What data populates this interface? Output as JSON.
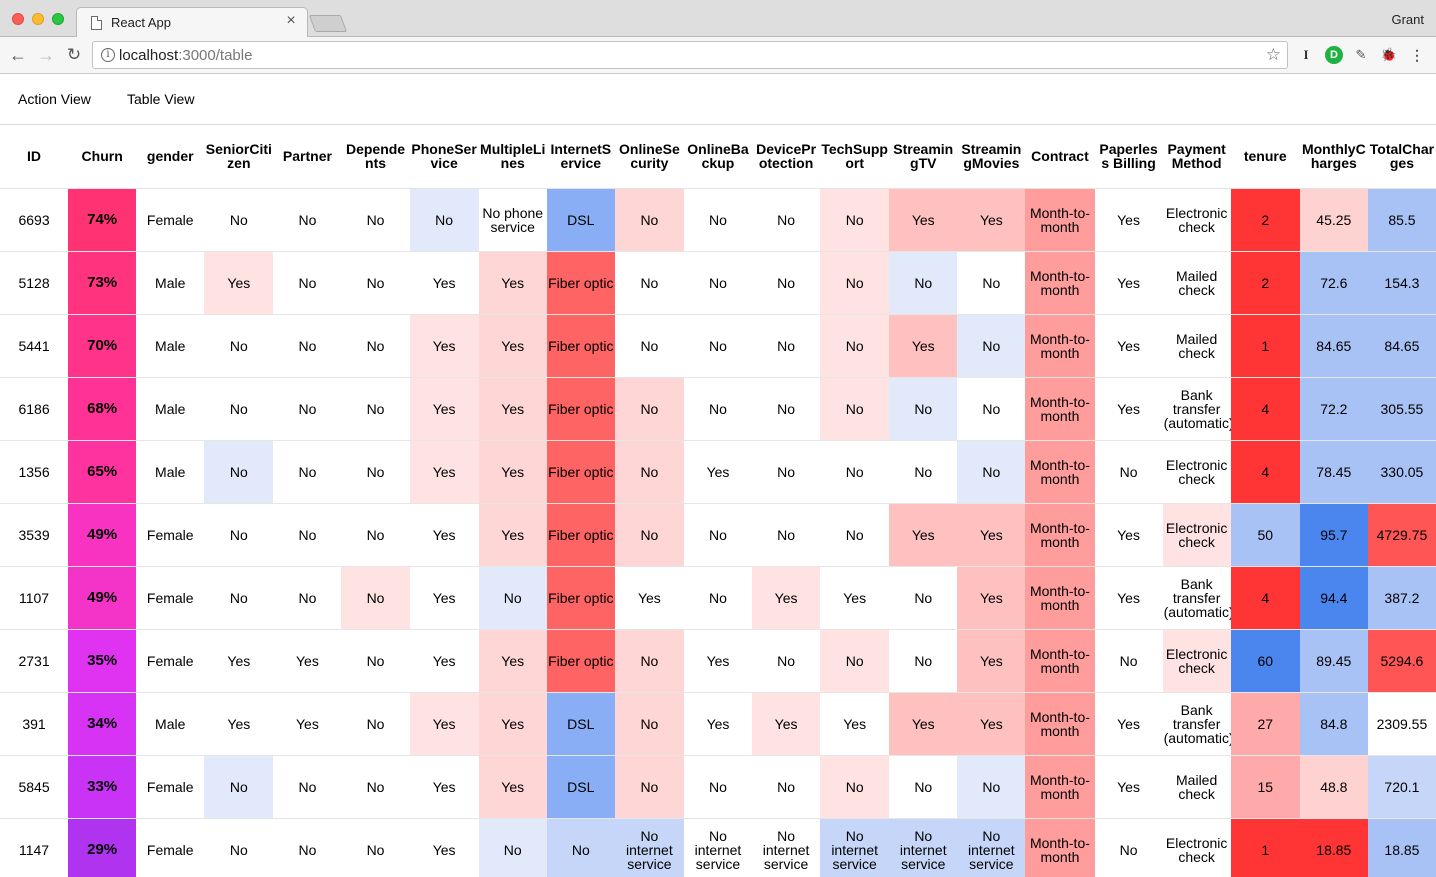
{
  "browser": {
    "tab_title": "React App",
    "tab_close": "×",
    "profile": "Grant",
    "url_host": "localhost",
    "url_path": ":3000/table",
    "info_glyph": "i",
    "back_glyph": "←",
    "forward_glyph": "→",
    "reload_glyph": "↻",
    "star_glyph": "☆",
    "ext_icons": [
      "I",
      "D",
      "✎",
      "🐞"
    ],
    "menu_glyph": "⋮"
  },
  "nav": {
    "action_view": "Action View",
    "table_view": "Table View"
  },
  "colors": {
    "red_strong": "#ff3333",
    "red_medium": "#ff9999",
    "red_light": "#ffc9c9",
    "red_faint": "#ffe3e3",
    "blue_strong": "#4a86ee",
    "blue_medium": "#8aaef5",
    "blue_light": "#c6d6f8",
    "blue_faint": "#e1e9fb"
  },
  "table": {
    "columns": [
      "ID",
      "Churn",
      "gender",
      "SeniorCitizen",
      "Partner",
      "Dependents",
      "PhoneService",
      "MultipleLines",
      "InternetService",
      "OnlineSecurity",
      "OnlineBackup",
      "DeviceProtection",
      "TechSupport",
      "StreamingTV",
      "StreamingMovies",
      "Contract",
      "Paperless Billing",
      "Payment Method",
      "tenure",
      "MonthlyCharges",
      "TotalCharges"
    ],
    "rows": [
      {
        "churn_color": "#ff3374",
        "cells": [
          [
            "6693",
            ""
          ],
          [
            "74%",
            ""
          ],
          [
            "Female",
            ""
          ],
          [
            "No",
            ""
          ],
          [
            "No",
            ""
          ],
          [
            "No",
            ""
          ],
          [
            "No",
            "#e1e9fb"
          ],
          [
            "No phone service",
            ""
          ],
          [
            "DSL",
            "#8aaef5"
          ],
          [
            "No",
            "#ffd6d6"
          ],
          [
            "No",
            ""
          ],
          [
            "No",
            ""
          ],
          [
            "No",
            "#ffe3e3"
          ],
          [
            "Yes",
            "#ffc0c0"
          ],
          [
            "Yes",
            "#ffc0c0"
          ],
          [
            "Month-to-month",
            "#ff9d9d"
          ],
          [
            "Yes",
            ""
          ],
          [
            "Electronic check",
            ""
          ],
          [
            "2",
            "#ff3535"
          ],
          [
            "45.25",
            "#ffd2d2"
          ],
          [
            "85.5",
            "#a8c2f5"
          ]
        ]
      },
      {
        "churn_color": "#ff337e",
        "cells": [
          [
            "5128",
            ""
          ],
          [
            "73%",
            ""
          ],
          [
            "Male",
            ""
          ],
          [
            "Yes",
            "#ffe3e3"
          ],
          [
            "No",
            ""
          ],
          [
            "No",
            ""
          ],
          [
            "Yes",
            ""
          ],
          [
            "Yes",
            "#ffd6d6"
          ],
          [
            "Fiber optic",
            "#ff6464"
          ],
          [
            "No",
            ""
          ],
          [
            "No",
            ""
          ],
          [
            "No",
            ""
          ],
          [
            "No",
            "#ffe3e3"
          ],
          [
            "No",
            "#e1e9fb"
          ],
          [
            "No",
            ""
          ],
          [
            "Month-to-month",
            "#ff9d9d"
          ],
          [
            "Yes",
            ""
          ],
          [
            "Mailed check",
            ""
          ],
          [
            "2",
            "#ff3535"
          ],
          [
            "72.6",
            "#a8c2f5"
          ],
          [
            "154.3",
            "#a8c2f5"
          ]
        ]
      },
      {
        "churn_color": "#ff338a",
        "cells": [
          [
            "5441",
            ""
          ],
          [
            "70%",
            ""
          ],
          [
            "Male",
            ""
          ],
          [
            "No",
            ""
          ],
          [
            "No",
            ""
          ],
          [
            "No",
            ""
          ],
          [
            "Yes",
            "#ffe3e3"
          ],
          [
            "Yes",
            "#ffd6d6"
          ],
          [
            "Fiber optic",
            "#ff6464"
          ],
          [
            "No",
            ""
          ],
          [
            "No",
            ""
          ],
          [
            "No",
            ""
          ],
          [
            "No",
            "#ffe3e3"
          ],
          [
            "Yes",
            "#ffc0c0"
          ],
          [
            "No",
            "#e1e9fb"
          ],
          [
            "Month-to-month",
            "#ff9d9d"
          ],
          [
            "Yes",
            ""
          ],
          [
            "Mailed check",
            ""
          ],
          [
            "1",
            "#ff3535"
          ],
          [
            "84.65",
            "#a8c2f5"
          ],
          [
            "84.65",
            "#a8c2f5"
          ]
        ]
      },
      {
        "churn_color": "#ff3395",
        "cells": [
          [
            "6186",
            ""
          ],
          [
            "68%",
            ""
          ],
          [
            "Male",
            ""
          ],
          [
            "No",
            ""
          ],
          [
            "No",
            ""
          ],
          [
            "No",
            ""
          ],
          [
            "Yes",
            "#ffe3e3"
          ],
          [
            "Yes",
            "#ffd6d6"
          ],
          [
            "Fiber optic",
            "#ff6464"
          ],
          [
            "No",
            "#ffd6d6"
          ],
          [
            "No",
            ""
          ],
          [
            "No",
            ""
          ],
          [
            "No",
            "#ffe3e3"
          ],
          [
            "No",
            "#e1e9fb"
          ],
          [
            "No",
            ""
          ],
          [
            "Month-to-month",
            "#ff9d9d"
          ],
          [
            "Yes",
            ""
          ],
          [
            "Bank transfer (automatic)",
            ""
          ],
          [
            "4",
            "#ff3535"
          ],
          [
            "72.2",
            "#a8c2f5"
          ],
          [
            "305.55",
            "#a8c2f5"
          ]
        ]
      },
      {
        "churn_color": "#ff33a0",
        "cells": [
          [
            "1356",
            ""
          ],
          [
            "65%",
            ""
          ],
          [
            "Male",
            ""
          ],
          [
            "No",
            "#e1e9fb"
          ],
          [
            "No",
            ""
          ],
          [
            "No",
            ""
          ],
          [
            "Yes",
            "#ffe3e3"
          ],
          [
            "Yes",
            "#ffd6d6"
          ],
          [
            "Fiber optic",
            "#ff6464"
          ],
          [
            "No",
            "#ffd6d6"
          ],
          [
            "Yes",
            ""
          ],
          [
            "No",
            ""
          ],
          [
            "No",
            ""
          ],
          [
            "No",
            ""
          ],
          [
            "No",
            "#e1e9fb"
          ],
          [
            "Month-to-month",
            "#ff9d9d"
          ],
          [
            "No",
            ""
          ],
          [
            "Electronic check",
            ""
          ],
          [
            "4",
            "#ff3535"
          ],
          [
            "78.45",
            "#a8c2f5"
          ],
          [
            "330.05",
            "#a8c2f5"
          ]
        ]
      },
      {
        "churn_color": "#f933c1",
        "cells": [
          [
            "3539",
            ""
          ],
          [
            "49%",
            ""
          ],
          [
            "Female",
            ""
          ],
          [
            "No",
            ""
          ],
          [
            "No",
            ""
          ],
          [
            "No",
            ""
          ],
          [
            "Yes",
            ""
          ],
          [
            "Yes",
            "#ffd6d6"
          ],
          [
            "Fiber optic",
            "#ff6464"
          ],
          [
            "No",
            "#ffd6d6"
          ],
          [
            "No",
            ""
          ],
          [
            "No",
            ""
          ],
          [
            "No",
            ""
          ],
          [
            "Yes",
            "#ffc0c0"
          ],
          [
            "Yes",
            "#ffc0c0"
          ],
          [
            "Month-to-month",
            "#ff9d9d"
          ],
          [
            "Yes",
            ""
          ],
          [
            "Electronic check",
            "#ffe3e3"
          ],
          [
            "50",
            "#a8c2f5"
          ],
          [
            "95.7",
            "#4a86ee"
          ],
          [
            "4729.75",
            "#ff5555"
          ]
        ]
      },
      {
        "churn_color": "#f433c8",
        "cells": [
          [
            "1107",
            ""
          ],
          [
            "49%",
            ""
          ],
          [
            "Female",
            ""
          ],
          [
            "No",
            ""
          ],
          [
            "No",
            ""
          ],
          [
            "No",
            "#ffe3e3"
          ],
          [
            "Yes",
            ""
          ],
          [
            "No",
            "#e1e9fb"
          ],
          [
            "Fiber optic",
            "#ff6464"
          ],
          [
            "Yes",
            ""
          ],
          [
            "No",
            ""
          ],
          [
            "Yes",
            "#ffe3e3"
          ],
          [
            "Yes",
            ""
          ],
          [
            "No",
            ""
          ],
          [
            "Yes",
            "#ffc0c0"
          ],
          [
            "Month-to-month",
            "#ff9d9d"
          ],
          [
            "Yes",
            ""
          ],
          [
            "Bank transfer (automatic)",
            ""
          ],
          [
            "4",
            "#ff3535"
          ],
          [
            "94.4",
            "#4a86ee"
          ],
          [
            "387.2",
            "#a8c2f5"
          ]
        ]
      },
      {
        "churn_color": "#e033f2",
        "cells": [
          [
            "2731",
            ""
          ],
          [
            "35%",
            ""
          ],
          [
            "Female",
            ""
          ],
          [
            "Yes",
            ""
          ],
          [
            "Yes",
            ""
          ],
          [
            "No",
            ""
          ],
          [
            "Yes",
            ""
          ],
          [
            "Yes",
            "#ffd6d6"
          ],
          [
            "Fiber optic",
            "#ff6464"
          ],
          [
            "No",
            "#ffd6d6"
          ],
          [
            "Yes",
            ""
          ],
          [
            "No",
            ""
          ],
          [
            "No",
            "#ffe3e3"
          ],
          [
            "No",
            ""
          ],
          [
            "Yes",
            "#ffc0c0"
          ],
          [
            "Month-to-month",
            "#ff9d9d"
          ],
          [
            "No",
            ""
          ],
          [
            "Electronic check",
            "#ffe3e3"
          ],
          [
            "60",
            "#4a86ee"
          ],
          [
            "89.45",
            "#a8c2f5"
          ],
          [
            "5294.6",
            "#ff5555"
          ]
        ]
      },
      {
        "churn_color": "#d733f5",
        "cells": [
          [
            "391",
            ""
          ],
          [
            "34%",
            ""
          ],
          [
            "Male",
            ""
          ],
          [
            "Yes",
            ""
          ],
          [
            "Yes",
            ""
          ],
          [
            "No",
            ""
          ],
          [
            "Yes",
            "#ffe3e3"
          ],
          [
            "Yes",
            "#ffd6d6"
          ],
          [
            "DSL",
            "#8aaef5"
          ],
          [
            "No",
            "#ffd6d6"
          ],
          [
            "Yes",
            ""
          ],
          [
            "Yes",
            "#ffe3e3"
          ],
          [
            "Yes",
            ""
          ],
          [
            "Yes",
            "#ffc0c0"
          ],
          [
            "Yes",
            "#ffc0c0"
          ],
          [
            "Month-to-month",
            "#ff9d9d"
          ],
          [
            "Yes",
            ""
          ],
          [
            "Bank transfer (automatic)",
            ""
          ],
          [
            "27",
            "#ffaaaa"
          ],
          [
            "84.8",
            "#a8c2f5"
          ],
          [
            "2309.55",
            ""
          ]
        ]
      },
      {
        "churn_color": "#c833f5",
        "cells": [
          [
            "5845",
            ""
          ],
          [
            "33%",
            ""
          ],
          [
            "Female",
            ""
          ],
          [
            "No",
            "#e1e9fb"
          ],
          [
            "No",
            ""
          ],
          [
            "No",
            ""
          ],
          [
            "Yes",
            ""
          ],
          [
            "Yes",
            "#ffd6d6"
          ],
          [
            "DSL",
            "#8aaef5"
          ],
          [
            "No",
            "#ffd6d6"
          ],
          [
            "No",
            ""
          ],
          [
            "No",
            ""
          ],
          [
            "No",
            "#ffe3e3"
          ],
          [
            "No",
            ""
          ],
          [
            "No",
            "#e1e9fb"
          ],
          [
            "Month-to-month",
            "#ff9d9d"
          ],
          [
            "Yes",
            ""
          ],
          [
            "Mailed check",
            ""
          ],
          [
            "15",
            "#ffaaaa"
          ],
          [
            "48.8",
            "#ffd2d2"
          ],
          [
            "720.1",
            "#c6d6f8"
          ]
        ]
      },
      {
        "churn_color": "#b033f0",
        "cells": [
          [
            "1147",
            ""
          ],
          [
            "29%",
            ""
          ],
          [
            "Female",
            ""
          ],
          [
            "No",
            ""
          ],
          [
            "No",
            ""
          ],
          [
            "No",
            ""
          ],
          [
            "Yes",
            ""
          ],
          [
            "No",
            "#e1e9fb"
          ],
          [
            "No",
            "#c6d6f8"
          ],
          [
            "No internet service",
            "#c6d6f8"
          ],
          [
            "No internet service",
            ""
          ],
          [
            "No internet service",
            ""
          ],
          [
            "No internet service",
            "#c6d6f8"
          ],
          [
            "No internet service",
            "#c6d6f8"
          ],
          [
            "No internet service",
            "#c6d6f8"
          ],
          [
            "Month-to-month",
            "#ff9d9d"
          ],
          [
            "No",
            ""
          ],
          [
            "Electronic check",
            ""
          ],
          [
            "1",
            "#ff3535"
          ],
          [
            "18.85",
            "#ff3535"
          ],
          [
            "18.85",
            "#a8c2f5"
          ]
        ]
      }
    ]
  }
}
